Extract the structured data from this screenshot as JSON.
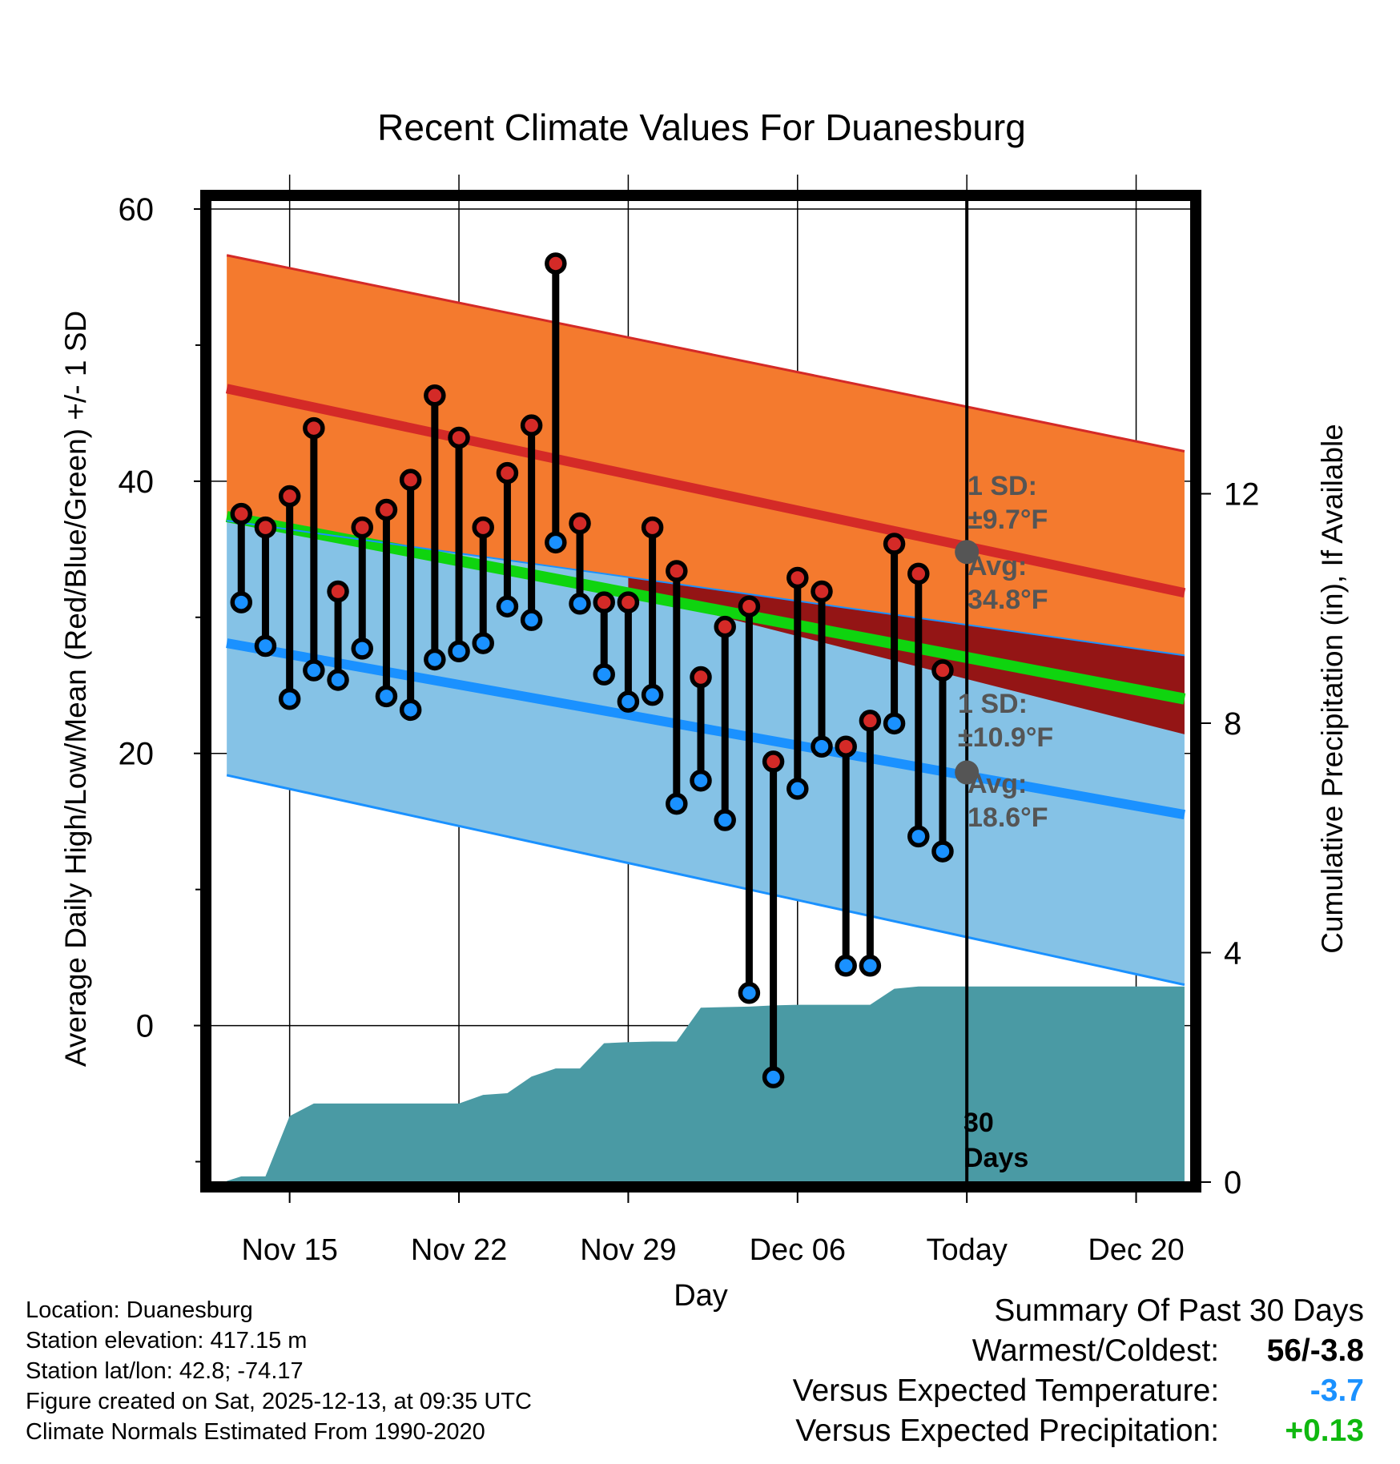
{
  "chart_data": {
    "type": "line",
    "title": "Recent Climate Values For Duanesburg",
    "xlabel": "Day",
    "ylabel": "Average Daily High/Low/Mean (Red/Blue/Green) +/- 1 SD",
    "y2label": "Cumulative Precipitation (in), If Available",
    "ylim": [
      -11.5,
      61
    ],
    "y2lim": [
      0,
      17.2
    ],
    "yticks": [
      0,
      20,
      40,
      60
    ],
    "y2ticks": [
      0,
      4,
      8,
      12
    ],
    "xlim": [
      -3.3,
      37.3
    ],
    "xticks": [
      {
        "x": 0,
        "label": "Nov 15"
      },
      {
        "x": 7,
        "label": "Nov 22"
      },
      {
        "x": 14,
        "label": "Nov 29"
      },
      {
        "x": 21,
        "label": "Dec 06"
      },
      {
        "x": 28,
        "label": "Today"
      },
      {
        "x": 35,
        "label": "Dec 20"
      }
    ],
    "normals": {
      "x": [
        -2.6,
        37
      ],
      "high_mean": [
        46.8,
        31.8
      ],
      "high_sd_upper": [
        56.6,
        42.2
      ],
      "high_sd_lower": [
        37.1,
        27.2
      ],
      "low_mean": [
        28.1,
        15.5
      ],
      "low_sd_upper": [
        37.1,
        27.2
      ],
      "low_sd_lower": [
        18.4,
        3.0
      ],
      "mean": [
        37.4,
        24.0
      ]
    },
    "observed": {
      "x": [
        -2,
        -1,
        0,
        1,
        2,
        3,
        4,
        5,
        6,
        7,
        8,
        9,
        10,
        11,
        12,
        13,
        14,
        15,
        16,
        17,
        18,
        19,
        20,
        21,
        22,
        23,
        24,
        25,
        26,
        27
      ],
      "high": [
        37.6,
        36.6,
        38.9,
        43.9,
        31.9,
        36.6,
        37.9,
        40.1,
        46.3,
        43.2,
        36.6,
        40.6,
        44.1,
        56.0,
        36.9,
        31.1,
        31.1,
        36.6,
        33.4,
        25.6,
        29.3,
        30.8,
        19.4,
        32.9,
        31.9,
        20.5,
        22.4,
        35.4,
        33.2,
        26.1
      ],
      "low": [
        31.1,
        27.9,
        24.0,
        26.1,
        25.4,
        27.7,
        24.2,
        23.2,
        26.9,
        27.5,
        28.1,
        30.8,
        29.8,
        35.5,
        31.0,
        25.8,
        23.8,
        24.3,
        16.3,
        18.0,
        15.1,
        2.4,
        -3.8,
        17.4,
        20.5,
        4.4,
        4.4,
        22.2,
        13.9,
        12.8
      ]
    },
    "precipitation": {
      "x": [
        -2.6,
        -2,
        -1,
        0,
        1,
        2,
        3,
        4,
        5,
        6,
        7,
        8,
        9,
        10,
        11,
        12,
        13,
        14,
        15,
        16,
        17,
        18,
        19,
        20,
        21,
        22,
        23,
        24,
        25,
        26,
        27,
        37
      ],
      "cumulative": [
        0.02,
        0.1,
        0.1,
        1.15,
        1.37,
        1.37,
        1.37,
        1.37,
        1.37,
        1.37,
        1.37,
        1.52,
        1.55,
        1.84,
        1.98,
        1.98,
        2.42,
        2.44,
        2.45,
        2.45,
        3.04,
        3.05,
        3.06,
        3.08,
        3.09,
        3.09,
        3.09,
        3.09,
        3.37,
        3.41,
        3.41,
        3.41
      ]
    },
    "annotations": {
      "high_sd": "1 SD:",
      "high_sd_value": "±9.7°F",
      "high_avg": "Avg:",
      "high_avg_value": "34.8°F",
      "high_avg_y": 34.8,
      "low_sd": "1 SD:",
      "low_sd_value": "±10.9°F",
      "low_avg": "Avg:",
      "low_avg_value": "18.6°F",
      "low_avg_y": 18.6,
      "period_line1": "30",
      "period_line2": "Days",
      "today_x": 28
    },
    "colors": {
      "high_band": "#f47a2e",
      "high_line": "#d42a27",
      "low_band": "#85c2e6",
      "low_line": "#1a91ff",
      "mean_line": "#0fd40f",
      "overlap": "#941515",
      "precip": "#4a9aa4",
      "high_dot": "#d42a27",
      "low_dot": "#1a91ff",
      "annotation": "#555555"
    }
  },
  "footer": {
    "location": "Location: Duanesburg",
    "elevation": "Station elevation: 417.15 m",
    "latlon": "Station lat/lon: 42.8; -74.17",
    "created": "Figure created on Sat, 2025-12-13, at 09:35 UTC",
    "normals": "Climate Normals Estimated From 1990-2020"
  },
  "summary": {
    "title": "Summary Of Past 30 Days",
    "warmest_coldest_label": "Warmest/Coldest:",
    "warmest_coldest_value": "56/-3.8",
    "temp_label": "Versus Expected Temperature:",
    "temp_value": "-3.7",
    "temp_color": "#1a91ff",
    "precip_label": "Versus Expected Precipitation:",
    "precip_value": "+0.13",
    "precip_color": "#0fb80f"
  }
}
